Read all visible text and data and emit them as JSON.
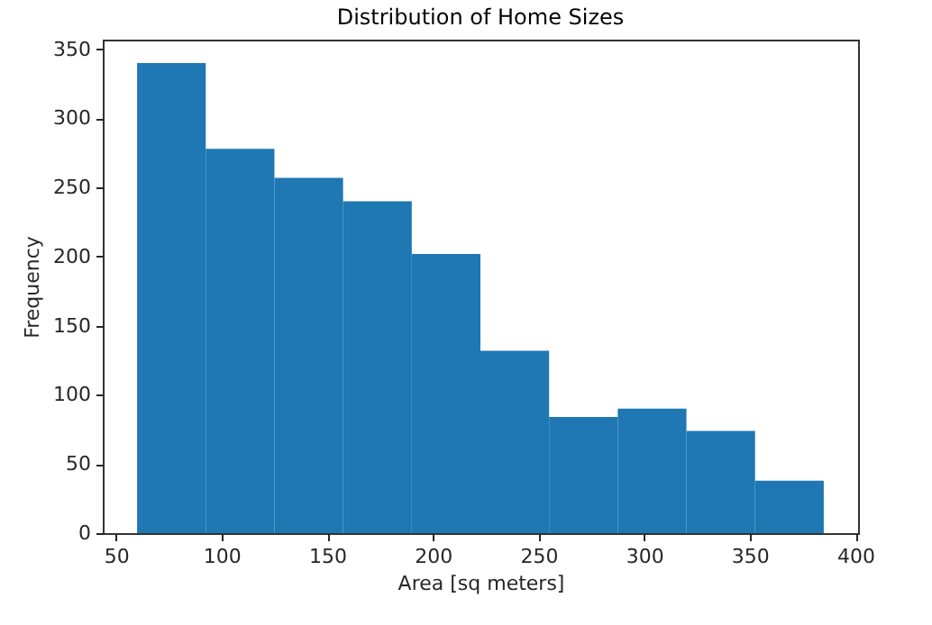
{
  "chart_data": {
    "type": "histogram",
    "title": "Distribution of Home Sizes",
    "xlabel": "Area [sq meters]",
    "ylabel": "Frequency",
    "bins": [
      60,
      92.5,
      125,
      157.5,
      190,
      222.5,
      255,
      287.5,
      320,
      352.5,
      385
    ],
    "values": [
      340,
      278,
      257,
      240,
      202,
      132,
      84,
      90,
      74,
      38
    ],
    "color": "#1f77b4",
    "xlim": [
      43.75,
      401.25
    ],
    "xticks": [
      50,
      100,
      150,
      200,
      250,
      300,
      350,
      400
    ],
    "ylim": [
      0,
      357
    ],
    "yticks": [
      0,
      50,
      100,
      150,
      200,
      250,
      300,
      350
    ],
    "grid": false
  }
}
